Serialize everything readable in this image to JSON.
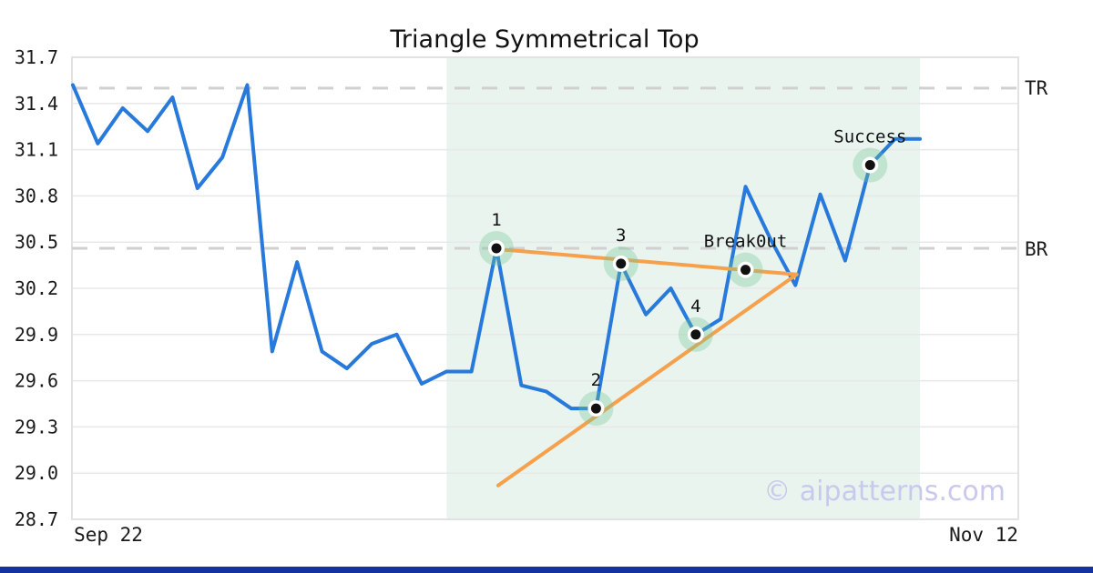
{
  "title": "Triangle Symmetrical Top",
  "watermark": "© aipatterns.com",
  "colors": {
    "price_line": "#2879dc",
    "trend_line": "#f7a04c",
    "marker_halo": "#70c494",
    "marker_dot": "#111111",
    "marker_ring": "#ffffff",
    "highlight_region": "#e9f4ee",
    "gridline": "#e8e8e8",
    "level_dash": "#d0d0d0",
    "plot_border": "#e2e2e2",
    "accent_bar": "#1433a0",
    "watermark": "#c9c9ee"
  },
  "chart_data": {
    "type": "line",
    "title": "Triangle Symmetrical Top",
    "xlabel": "",
    "ylabel": "",
    "ylim": [
      28.7,
      31.7
    ],
    "y_ticks": [
      28.7,
      29.0,
      29.3,
      29.6,
      29.9,
      30.2,
      30.5,
      30.8,
      31.1,
      31.4,
      31.7
    ],
    "x_tick_labels": [
      "Sep 22",
      "Nov 12"
    ],
    "grid": "horizontal",
    "legend": "none",
    "series": [
      {
        "name": "price",
        "values": [
          31.52,
          31.14,
          31.37,
          31.22,
          31.44,
          30.85,
          31.05,
          31.52,
          29.79,
          30.37,
          29.79,
          29.68,
          29.84,
          29.9,
          29.58,
          29.66,
          29.66,
          30.46,
          29.57,
          29.53,
          29.42,
          29.42,
          30.36,
          30.03,
          30.2,
          29.9,
          30.0,
          30.86,
          30.52,
          30.22,
          30.81,
          30.38,
          31.0,
          31.17,
          31.17
        ]
      }
    ],
    "levels": [
      {
        "label": "TR",
        "value": 31.5
      },
      {
        "label": "BR",
        "value": 30.46
      }
    ],
    "trendlines": [
      {
        "name": "upper",
        "from_day": 17.0,
        "from_value": 30.455,
        "to_day": 29.05,
        "to_value": 30.29
      },
      {
        "name": "lower",
        "from_day": 17.07,
        "from_value": 28.92,
        "to_day": 29.05,
        "to_value": 30.29
      }
    ],
    "markers": [
      {
        "label": "1",
        "day": 17,
        "value": 30.46
      },
      {
        "label": "2",
        "day": 21,
        "value": 29.42
      },
      {
        "label": "3",
        "day": 22,
        "value": 30.36
      },
      {
        "label": "4",
        "day": 25,
        "value": 29.9
      },
      {
        "label": "Break0ut",
        "day": 27,
        "value": 30.32
      },
      {
        "label": "Success",
        "day": 32,
        "value": 31.0
      }
    ],
    "highlight_region": {
      "from_day": 15,
      "to_day": 34
    }
  }
}
